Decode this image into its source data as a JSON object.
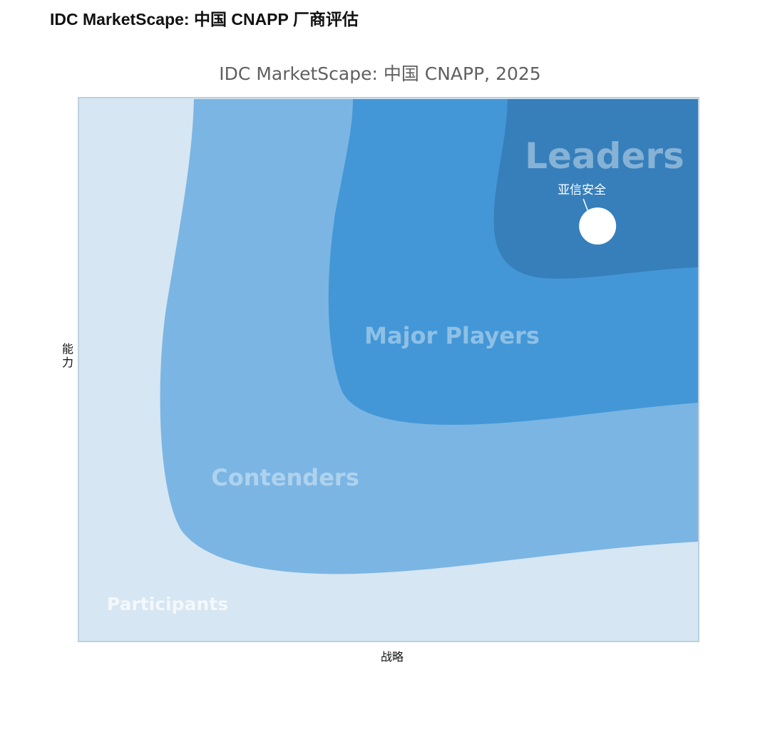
{
  "page_title": "IDC MarketScape: 中国 CNAPP 厂商评估",
  "chart_data": {
    "type": "scatter",
    "title": "IDC MarketScape: 中国 CNAPP, 2025",
    "xlabel": "战略",
    "ylabel": "能力",
    "xlim": [
      0,
      1
    ],
    "ylim": [
      0,
      1
    ],
    "grid": false,
    "regions": [
      {
        "name": "Participants",
        "color": "#d6e6f2"
      },
      {
        "name": "Contenders",
        "color": "#7bb5e3"
      },
      {
        "name": "Major Players",
        "color": "#4497d6"
      },
      {
        "name": "Leaders",
        "color": "#367fbb"
      }
    ],
    "points": [
      {
        "label": "亚信安全",
        "x": 0.837,
        "y": 0.764,
        "color": "#ffffff"
      }
    ]
  }
}
